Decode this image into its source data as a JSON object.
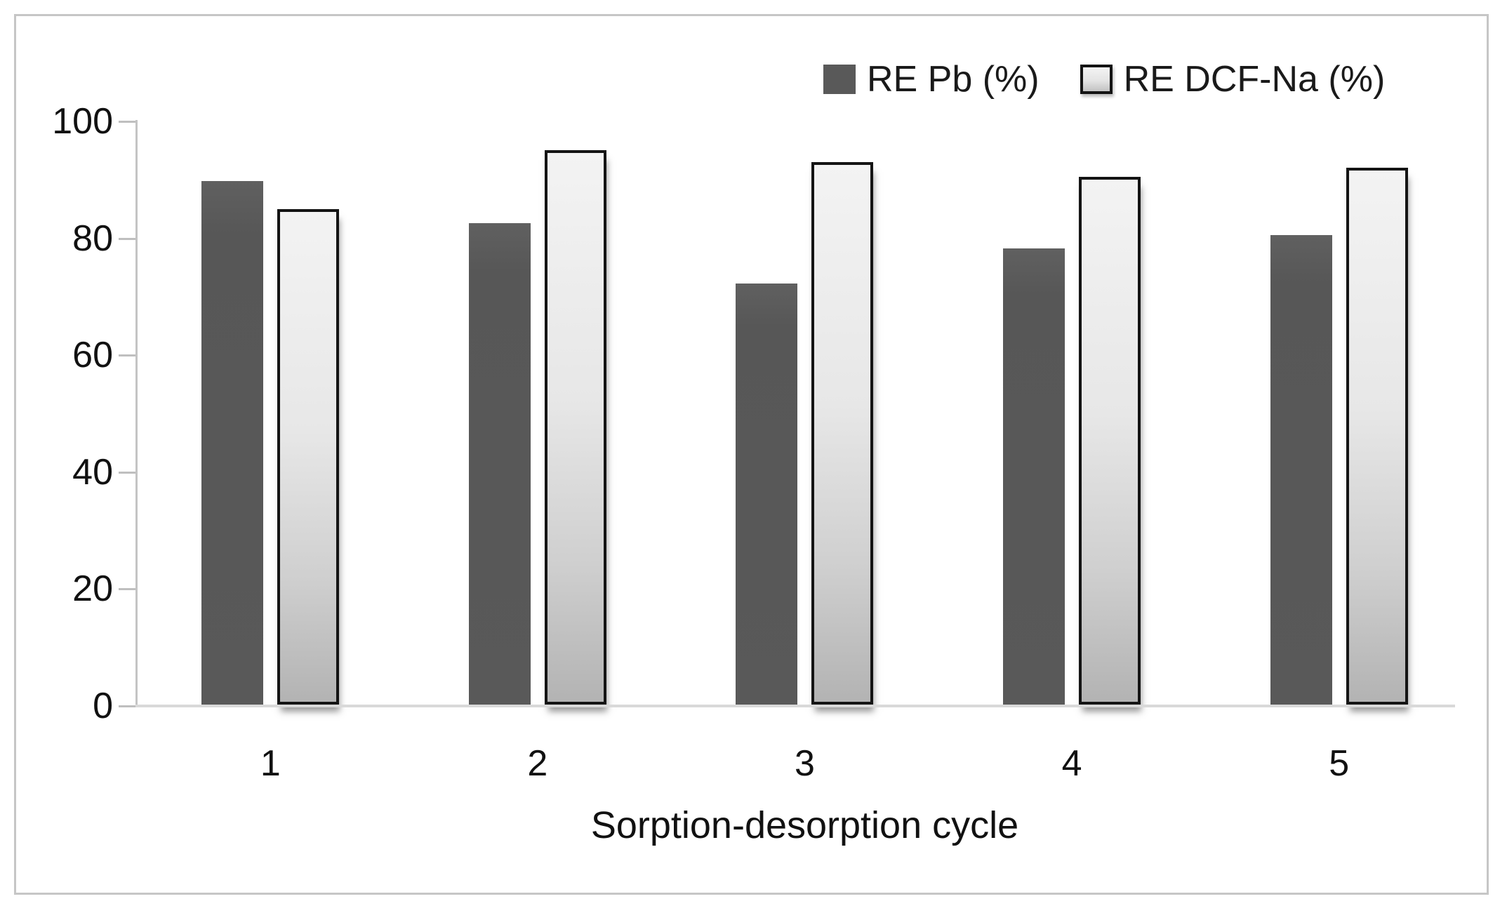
{
  "chart_data": {
    "type": "bar",
    "title": "",
    "xlabel": "Sorption-desorption cycle",
    "ylabel": "",
    "ylim": [
      0,
      100
    ],
    "yticks": [
      0,
      20,
      40,
      60,
      80,
      100
    ],
    "grid": false,
    "legend_position": "top-right",
    "categories": [
      "1",
      "2",
      "3",
      "4",
      "5"
    ],
    "series": [
      {
        "name": "RE Pb (%)",
        "values": [
          89.5,
          82.3,
          72.0,
          78.0,
          80.3
        ]
      },
      {
        "name": "RE DCF-Na (%)",
        "values": [
          84.8,
          94.8,
          92.8,
          90.3,
          91.8
        ]
      }
    ]
  },
  "legend": {
    "items": [
      {
        "label": "RE Pb (%)",
        "swatch": "dark-solid-square"
      },
      {
        "label": "RE DCF-Na (%)",
        "swatch": "light-bordered-square"
      }
    ]
  },
  "colors": {
    "pb_bar_fill": "#595959",
    "dcf_bar_fill_top": "#f3f3f3",
    "dcf_bar_fill_bottom": "#b3b3b3",
    "dcf_bar_border": "#141414",
    "axis_line": "#c4c4c4",
    "baseline": "#d9d9d9",
    "frame_border": "#c6c6c6",
    "text": "#111111",
    "background": "#ffffff"
  }
}
